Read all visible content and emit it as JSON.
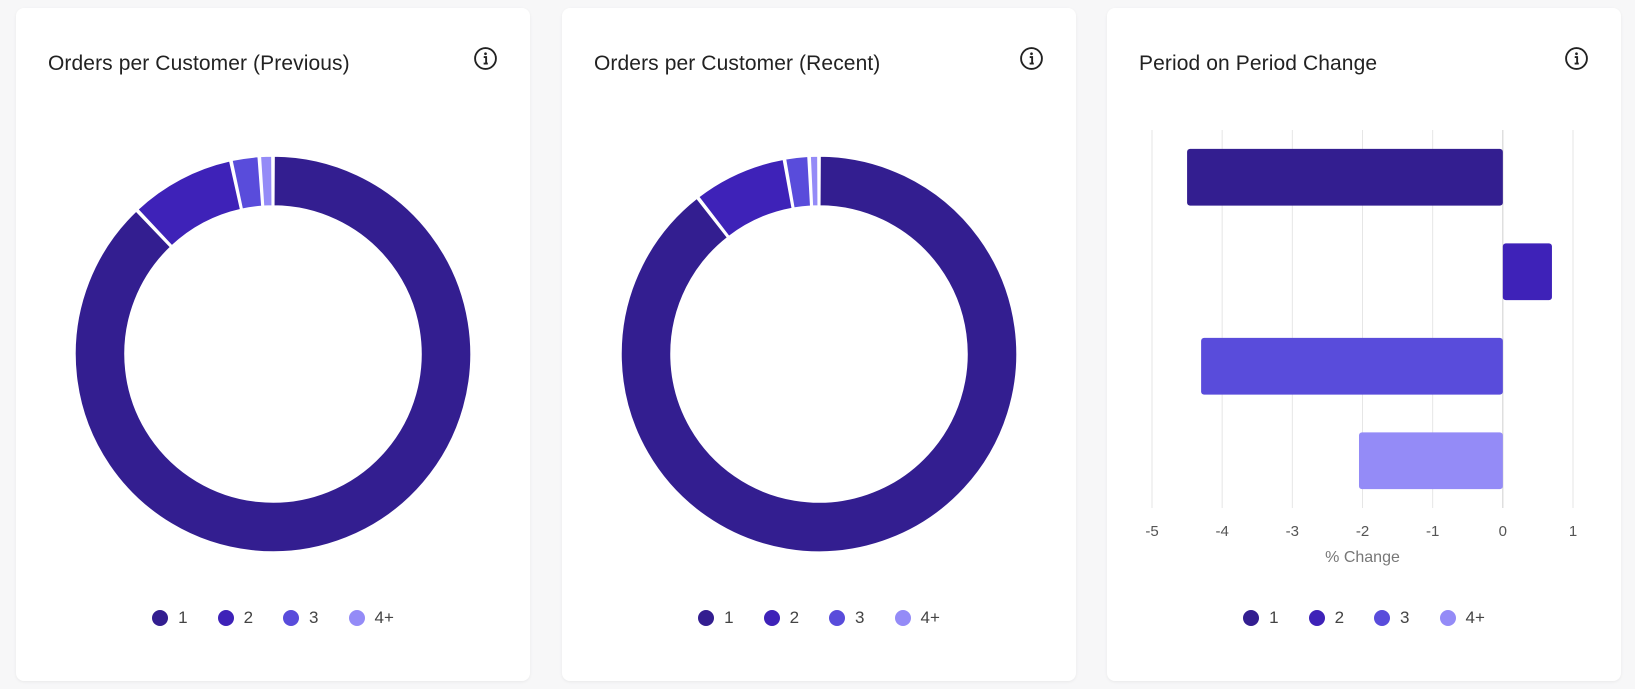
{
  "colors": {
    "s1": "#331e90",
    "s2": "#3e22b8",
    "s3": "#594cdb",
    "s4": "#948bf7"
  },
  "legend": [
    {
      "label": "1",
      "color": "#331e90"
    },
    {
      "label": "2",
      "color": "#3e22b8"
    },
    {
      "label": "3",
      "color": "#594cdb"
    },
    {
      "label": "4+",
      "color": "#948bf7"
    }
  ],
  "cards": [
    {
      "title": "Orders per Customer (Previous)"
    },
    {
      "title": "Orders per Customer (Recent)"
    },
    {
      "title": "Period on Period Change"
    }
  ],
  "chart_data": [
    {
      "type": "pie",
      "title": "Orders per Customer (Previous)",
      "categories": [
        "1",
        "2",
        "3",
        "4+"
      ],
      "values": [
        87.5,
        8.6,
        2.3,
        1.1
      ],
      "legend_position": "bottom"
    },
    {
      "type": "pie",
      "title": "Orders per Customer (Recent)",
      "categories": [
        "1",
        "2",
        "3",
        "4+"
      ],
      "values": [
        89.5,
        7.7,
        2.0,
        0.8
      ],
      "legend_position": "bottom"
    },
    {
      "type": "bar",
      "orientation": "horizontal",
      "title": "Period on Period Change",
      "categories": [
        "1",
        "2",
        "3",
        "4+"
      ],
      "values": [
        -4.5,
        0.7,
        -4.3,
        -2.05
      ],
      "xlabel": "% Change",
      "xlim": [
        -5,
        1
      ],
      "xticks": [
        "-5",
        "-4",
        "-3",
        "-2",
        "-1",
        "0",
        "1"
      ],
      "grid": true,
      "legend_position": "bottom"
    }
  ]
}
